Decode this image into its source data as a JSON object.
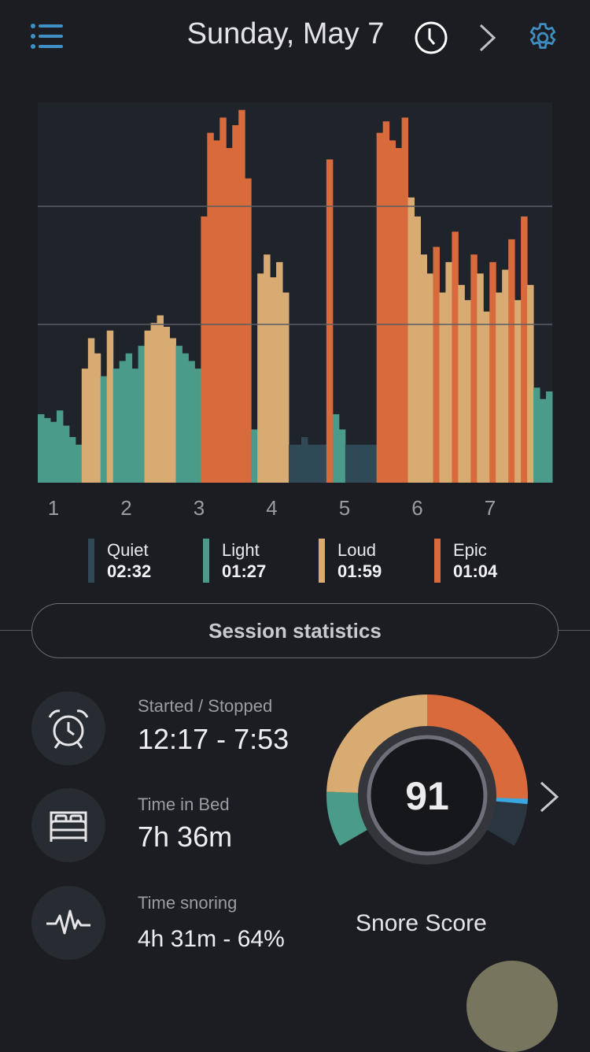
{
  "header": {
    "title": "Sunday, May 7",
    "menu_icon": "list-icon",
    "history_icon": "clock-icon",
    "next_icon": "chevron-right-icon",
    "settings_icon": "gear-icon",
    "accent": "#3f8fc4"
  },
  "colors": {
    "quiet": "#2f4a56",
    "light": "#4a9b8a",
    "loud": "#d8ab72",
    "epic": "#d96a3c"
  },
  "chart_data": {
    "type": "bar",
    "x_ticks": [
      "1",
      "2",
      "3",
      "4",
      "5",
      "6",
      "7"
    ],
    "ylim": [
      0,
      100
    ],
    "grid": true,
    "levels": [
      "l",
      "l",
      "l",
      "l",
      "l",
      "l",
      "l",
      "d",
      "d",
      "d",
      "l",
      "d",
      "l",
      "l",
      "l",
      "l",
      "l",
      "d",
      "d",
      "d",
      "d",
      "d",
      "l",
      "l",
      "l",
      "l",
      "e",
      "e",
      "e",
      "e",
      "e",
      "e",
      "e",
      "e",
      "l",
      "d",
      "d",
      "d",
      "d",
      "d",
      "q",
      "q",
      "q",
      "q",
      "q",
      "q",
      "e",
      "l",
      "l",
      "q",
      "q",
      "q",
      "q",
      "q",
      "e",
      "e",
      "e",
      "e",
      "e",
      "d",
      "d",
      "d",
      "d",
      "e",
      "d",
      "d",
      "e",
      "d",
      "d",
      "e",
      "d",
      "d",
      "e",
      "d",
      "d",
      "e",
      "d",
      "e",
      "d",
      "l",
      "l",
      "l"
    ],
    "values": [
      18,
      17,
      16,
      19,
      15,
      12,
      10,
      30,
      38,
      34,
      28,
      40,
      30,
      32,
      34,
      30,
      36,
      40,
      42,
      44,
      41,
      38,
      36,
      34,
      32,
      30,
      70,
      92,
      90,
      96,
      88,
      94,
      98,
      80,
      14,
      55,
      60,
      54,
      58,
      50,
      10,
      10,
      12,
      10,
      10,
      10,
      85,
      18,
      14,
      10,
      10,
      10,
      10,
      10,
      92,
      95,
      90,
      88,
      96,
      75,
      70,
      60,
      55,
      62,
      50,
      58,
      66,
      52,
      48,
      60,
      55,
      45,
      58,
      50,
      56,
      64,
      48,
      70,
      52,
      25,
      22,
      24
    ]
  },
  "legend": [
    {
      "name": "Quiet",
      "value": "02:32"
    },
    {
      "name": "Light",
      "value": "01:27"
    },
    {
      "name": "Loud",
      "value": "01:59"
    },
    {
      "name": "Epic",
      "value": "01:04"
    }
  ],
  "session": {
    "title": "Session statistics"
  },
  "stats": [
    {
      "label": "Started / Stopped",
      "value": "12:17 - 7:53",
      "icon": "alarm-clock-icon"
    },
    {
      "label": "Time in Bed",
      "value": "7h 36m",
      "icon": "bed-icon"
    },
    {
      "label": "Time snoring",
      "value": "4h 31m - 64%",
      "icon": "heartbeat-icon"
    }
  ],
  "score": {
    "value": "91",
    "label": "Snore Score"
  }
}
